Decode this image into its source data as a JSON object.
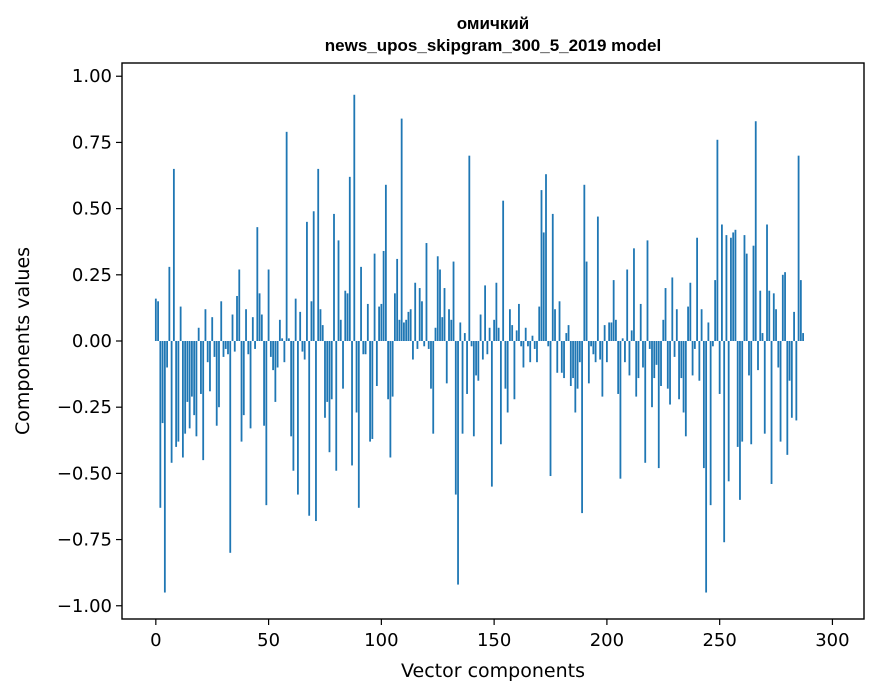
{
  "chart_data": {
    "type": "bar",
    "title_line1": "омичкий",
    "title_line2": "news_upos_skipgram_300_5_2019 model",
    "xlabel": "Vector components",
    "ylabel": "Components values",
    "xlim": [
      -15,
      314
    ],
    "ylim": [
      -1.05,
      1.05
    ],
    "x_ticks": [
      0,
      50,
      100,
      150,
      200,
      250,
      300
    ],
    "x_tick_labels": [
      "0",
      "50",
      "100",
      "150",
      "200",
      "250",
      "300"
    ],
    "y_ticks": [
      1.0,
      0.75,
      0.5,
      0.25,
      0.0,
      -0.25,
      -0.5,
      -0.75,
      -1.0
    ],
    "y_tick_labels": [
      "1.00",
      "0.75",
      "0.50",
      "0.25",
      "0.00",
      "−0.25",
      "−0.50",
      "−0.75",
      "−1.00"
    ],
    "bar_color": "#1f77b4",
    "values": [
      0.16,
      0.15,
      -0.63,
      -0.31,
      -0.95,
      -0.1,
      0.28,
      -0.46,
      0.65,
      -0.4,
      -0.38,
      0.13,
      -0.44,
      -0.35,
      -0.23,
      -0.33,
      -0.21,
      -0.28,
      -0.36,
      0.05,
      -0.2,
      -0.45,
      0.12,
      -0.08,
      -0.19,
      0.09,
      -0.06,
      -0.32,
      -0.25,
      0.15,
      -0.06,
      -0.03,
      -0.05,
      -0.8,
      0.1,
      -0.04,
      0.17,
      0.27,
      -0.38,
      -0.28,
      0.12,
      -0.05,
      -0.33,
      0.09,
      -0.03,
      0.43,
      0.18,
      0.1,
      -0.32,
      -0.62,
      0.27,
      -0.06,
      -0.11,
      -0.23,
      -0.1,
      0.08,
      0.01,
      -0.08,
      0.79,
      0.01,
      -0.36,
      -0.49,
      0.16,
      -0.58,
      0.11,
      -0.04,
      -0.07,
      0.45,
      -0.66,
      0.15,
      0.49,
      -0.68,
      0.65,
      0.12,
      0.06,
      -0.29,
      -0.23,
      -0.42,
      -0.22,
      0.48,
      -0.49,
      0.38,
      0.08,
      -0.18,
      0.19,
      0.18,
      0.62,
      -0.47,
      0.93,
      -0.27,
      -0.63,
      0.28,
      -0.05,
      -0.05,
      0.14,
      -0.38,
      -0.37,
      0.33,
      -0.17,
      0.13,
      0.14,
      0.34,
      0.59,
      -0.22,
      -0.44,
      -0.21,
      0.18,
      0.31,
      0.08,
      0.84,
      0.07,
      0.08,
      0.11,
      0.12,
      -0.07,
      0.22,
      -0.03,
      0.2,
      0.15,
      -0.02,
      0.37,
      -0.03,
      -0.18,
      -0.35,
      0.05,
      0.32,
      0.27,
      0.09,
      0.2,
      -0.16,
      0.12,
      0.08,
      0.3,
      -0.58,
      -0.92,
      0.07,
      -0.35,
      0.03,
      -0.2,
      0.7,
      -0.02,
      -0.36,
      -0.13,
      -0.15,
      0.1,
      -0.07,
      0.21,
      -0.05,
      0.05,
      -0.55,
      0.08,
      0.22,
      0.05,
      -0.39,
      0.53,
      -0.18,
      -0.27,
      0.12,
      0.06,
      -0.22,
      0.04,
      0.14,
      -0.02,
      -0.1,
      0.05,
      -0.02,
      -0.08,
      0.02,
      -0.03,
      -0.08,
      0.13,
      0.57,
      0.41,
      0.63,
      -0.02,
      -0.51,
      0.48,
      0.12,
      -0.12,
      0.15,
      -0.12,
      -0.14,
      0.03,
      0.06,
      -0.17,
      -0.14,
      -0.27,
      -0.18,
      -0.08,
      -0.65,
      0.59,
      0.3,
      -0.16,
      -0.02,
      -0.05,
      -0.08,
      0.47,
      -0.07,
      -0.21,
      0.06,
      -0.08,
      0.07,
      0.07,
      0.23,
      0.08,
      -0.2,
      -0.52,
      0.01,
      -0.08,
      0.27,
      -0.13,
      0.04,
      0.35,
      -0.21,
      -0.14,
      0.14,
      -0.1,
      -0.46,
      0.38,
      -0.03,
      -0.25,
      -0.14,
      -0.09,
      -0.48,
      -0.17,
      0.08,
      0.2,
      -0.18,
      -0.24,
      0.24,
      -0.06,
      0.12,
      -0.22,
      -0.14,
      -0.27,
      -0.36,
      0.13,
      0.22,
      -0.13,
      -0.03,
      0.39,
      -0.15,
      0.12,
      -0.48,
      -0.95,
      0.07,
      -0.62,
      -0.02,
      0.23,
      0.76,
      -0.2,
      0.44,
      -0.76,
      0.4,
      -0.53,
      0.39,
      0.41,
      0.42,
      -0.4,
      -0.6,
      -0.38,
      0.4,
      0.33,
      -0.13,
      -0.39,
      0.36,
      0.83,
      -0.11,
      0.19,
      0.03,
      -0.35,
      0.44,
      0.19,
      -0.54,
      0.18,
      0.12,
      -0.1,
      -0.38,
      0.25,
      0.26,
      -0.43,
      -0.15,
      -0.29,
      0.11,
      -0.3,
      0.7,
      0.23,
      0.03
    ]
  }
}
